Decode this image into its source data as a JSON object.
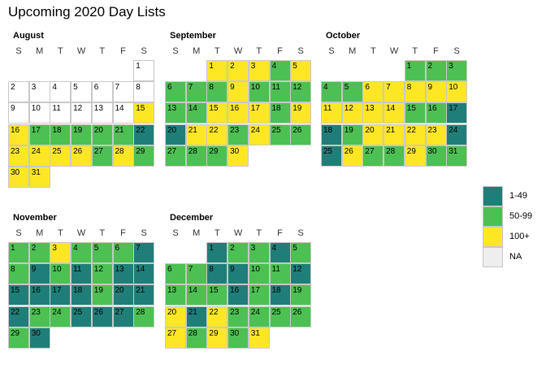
{
  "title": "Upcoming 2020 Day Lists",
  "weekday_labels": [
    "S",
    "M",
    "T",
    "W",
    "T",
    "F",
    "S"
  ],
  "colors": {
    "1-49": "#1f7f78",
    "50-99": "#4cc052",
    "100+": "#fde725",
    "NA": "#ffffff",
    "border": "#c8c8c8"
  },
  "chart_data": {
    "type": "heatmap",
    "title": "Upcoming 2020 Day Lists",
    "legend": {
      "placement": "right",
      "entries": [
        "1-49",
        "50-99",
        "100+",
        "NA"
      ]
    },
    "months": [
      {
        "name": "August",
        "days": 31,
        "start_weekday": 6,
        "categories": [
          "NA",
          "NA",
          "NA",
          "NA",
          "NA",
          "NA",
          "NA",
          "NA",
          "NA",
          "NA",
          "NA",
          "NA",
          "NA",
          "NA",
          "100+",
          "100+",
          "50-99",
          "50-99",
          "50-99",
          "50-99",
          "50-99",
          "1-49",
          "100+",
          "100+",
          "100+",
          "100+",
          "50-99",
          "100+",
          "50-99",
          "100+",
          "100+"
        ]
      },
      {
        "name": "September",
        "days": 30,
        "start_weekday": 2,
        "categories": [
          "100+",
          "100+",
          "100+",
          "50-99",
          "100+",
          "50-99",
          "50-99",
          "50-99",
          "100+",
          "50-99",
          "50-99",
          "50-99",
          "50-99",
          "50-99",
          "100+",
          "100+",
          "100+",
          "50-99",
          "100+",
          "1-49",
          "100+",
          "100+",
          "50-99",
          "100+",
          "50-99",
          "50-99",
          "50-99",
          "50-99",
          "50-99",
          "100+"
        ]
      },
      {
        "name": "October",
        "days": 31,
        "start_weekday": 4,
        "categories": [
          "50-99",
          "50-99",
          "50-99",
          "50-99",
          "50-99",
          "100+",
          "100+",
          "100+",
          "100+",
          "100+",
          "100+",
          "100+",
          "100+",
          "100+",
          "50-99",
          "50-99",
          "1-49",
          "1-49",
          "50-99",
          "100+",
          "100+",
          "100+",
          "100+",
          "1-49",
          "1-49",
          "100+",
          "50-99",
          "50-99",
          "100+",
          "50-99",
          "50-99"
        ]
      },
      {
        "name": "November",
        "days": 30,
        "start_weekday": 0,
        "categories": [
          "50-99",
          "50-99",
          "100+",
          "50-99",
          "50-99",
          "50-99",
          "1-49",
          "50-99",
          "1-49",
          "50-99",
          "1-49",
          "50-99",
          "1-49",
          "1-49",
          "1-49",
          "1-49",
          "1-49",
          "1-49",
          "50-99",
          "1-49",
          "1-49",
          "1-49",
          "50-99",
          "50-99",
          "1-49",
          "1-49",
          "1-49",
          "50-99",
          "50-99",
          "1-49"
        ]
      },
      {
        "name": "December",
        "days": 31,
        "start_weekday": 2,
        "categories": [
          "1-49",
          "50-99",
          "50-99",
          "1-49",
          "50-99",
          "50-99",
          "50-99",
          "1-49",
          "1-49",
          "50-99",
          "50-99",
          "1-49",
          "50-99",
          "50-99",
          "50-99",
          "1-49",
          "50-99",
          "1-49",
          "50-99",
          "100+",
          "1-49",
          "100+",
          "50-99",
          "50-99",
          "50-99",
          "50-99",
          "100+",
          "50-99",
          "100+",
          "50-99",
          "100+"
        ]
      }
    ]
  }
}
